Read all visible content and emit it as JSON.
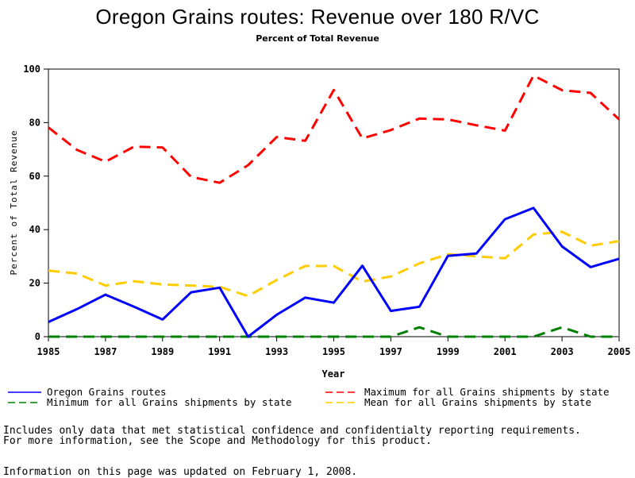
{
  "chart_data": {
    "type": "line",
    "title": "Oregon Grains routes: Revenue over 180 R/VC",
    "subtitle": "Percent of Total Revenue",
    "xlabel": "Year",
    "ylabel": "Percent of Total Revenue",
    "xlim": [
      1985,
      2005
    ],
    "ylim": [
      0,
      100
    ],
    "x_ticks": [
      1985,
      1987,
      1989,
      1991,
      1993,
      1995,
      1997,
      1999,
      2001,
      2003,
      2005
    ],
    "y_ticks": [
      0,
      20,
      40,
      60,
      80,
      100
    ],
    "x": [
      1985,
      1986,
      1987,
      1988,
      1989,
      1990,
      1991,
      1992,
      1993,
      1994,
      1995,
      1996,
      1997,
      1998,
      1999,
      2000,
      2001,
      2002,
      2003,
      2004,
      2005
    ],
    "series": [
      {
        "name": "Oregon Grains routes",
        "color": "#0000ff",
        "style": "solid",
        "values": [
          5.5,
          10.3,
          15.7,
          11.2,
          6.4,
          16.6,
          18.3,
          0,
          8.2,
          14.6,
          12.7,
          26.5,
          9.6,
          11.2,
          30.2,
          31.1,
          43.9,
          48.1,
          33.7,
          26.0,
          29.1
        ]
      },
      {
        "name": "Maximum for all Grains shipments by state",
        "color": "#ff0000",
        "style": "dashed",
        "values": [
          78.2,
          69.8,
          65.4,
          71.0,
          70.7,
          59.7,
          57.5,
          64.1,
          74.6,
          73.2,
          92.2,
          74.1,
          77.2,
          81.5,
          81.2,
          79.0,
          77.0,
          97.6,
          92.1,
          91.1,
          81.2
        ]
      },
      {
        "name": "Minimum for all Grains shipments by state",
        "color": "#008000",
        "style": "dashed",
        "values": [
          0,
          0,
          0,
          0,
          0,
          0,
          0,
          0,
          0,
          0,
          0,
          0,
          0,
          3.5,
          0,
          0,
          0,
          0,
          3.5,
          0,
          0
        ]
      },
      {
        "name": "Mean for all Grains shipments by state",
        "color": "#ffcc00",
        "style": "dashed",
        "values": [
          24.7,
          23.6,
          19.1,
          20.7,
          19.5,
          19.1,
          18.6,
          15.2,
          21.2,
          26.4,
          26.4,
          20.6,
          22.5,
          27.4,
          30.8,
          30.0,
          29.3,
          38.2,
          39.2,
          34.0,
          35.7
        ]
      }
    ],
    "legend_position": "bottom"
  },
  "notes": {
    "line1": "Includes only data that met statistical confidence and confidentialty reporting requirements.",
    "line2": "For more information, see the Scope and Methodology for this product.",
    "updated": "Information on this page was updated on February 1, 2008."
  }
}
